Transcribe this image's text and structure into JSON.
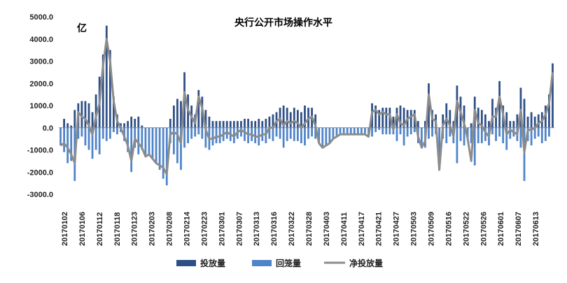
{
  "chart_data": {
    "type": "bar",
    "title": "央行公开市场操作水平",
    "unit_label": "亿",
    "ylim": [
      -3000,
      5000
    ],
    "yticks": [
      5000,
      4000,
      3000,
      2000,
      1000,
      0,
      -1000,
      -2000,
      -3000
    ],
    "ytick_labels": [
      "5000.0",
      "4000.0",
      "3000.0",
      "2000.0",
      "1000.0",
      "0.0",
      "-1000.0",
      "-2000.0",
      "-3000.0"
    ],
    "xtick_labels": [
      "20170102",
      "20170106",
      "20170112",
      "20170118",
      "20170123",
      "20170203",
      "20170208",
      "20170214",
      "20170223",
      "20170301",
      "20170307",
      "20170313",
      "20170316",
      "20170322",
      "20170328",
      "20170403",
      "20170411",
      "20170417",
      "20170421",
      "20170427",
      "20170503",
      "20170509",
      "20170516",
      "20170522",
      "20170526",
      "20170601",
      "20170607",
      "20170613"
    ],
    "grid": false,
    "legend_position": "bottom",
    "series": [
      {
        "name": "投放量",
        "color": "#2e4f86",
        "values": [
          0,
          400,
          200,
          100,
          800,
          1100,
          1200,
          1200,
          1100,
          700,
          1500,
          2300,
          3300,
          4600,
          3500,
          1400,
          600,
          200,
          200,
          300,
          500,
          400,
          500,
          100,
          0,
          0,
          0,
          0,
          0,
          0,
          0,
          400,
          1000,
          1300,
          1200,
          2500,
          1500,
          1000,
          600,
          1700,
          1400,
          800,
          500,
          300,
          300,
          300,
          300,
          300,
          300,
          300,
          300,
          300,
          400,
          400,
          300,
          300,
          400,
          300,
          400,
          500,
          600,
          700,
          900,
          1000,
          900,
          700,
          900,
          800,
          700,
          1000,
          900,
          900,
          600,
          0,
          0,
          0,
          0,
          0,
          0,
          0,
          0,
          0,
          0,
          0,
          0,
          0,
          0,
          0,
          1100,
          1000,
          800,
          900,
          900,
          900,
          500,
          900,
          1000,
          900,
          800,
          800,
          800,
          300,
          0,
          300,
          2000,
          800,
          600,
          0,
          600,
          1100,
          800,
          300,
          1900,
          1400,
          1000,
          0,
          200,
          1400,
          900,
          800,
          600,
          300,
          1300,
          900,
          2100,
          1000,
          700,
          300,
          300,
          600,
          1800,
          1300,
          500,
          700,
          500,
          600,
          700,
          1000,
          1500,
          2900
        ]
      },
      {
        "name": "回笼量",
        "color": "#4f84c9",
        "values": [
          -800,
          -1100,
          -1600,
          -1500,
          -2400,
          -500,
          -400,
          -800,
          -1000,
          -1400,
          -1000,
          -1200,
          -500,
          -600,
          -500,
          -200,
          -300,
          -200,
          -600,
          -1100,
          -2000,
          -900,
          -1200,
          -1000,
          -1300,
          -1200,
          -1400,
          -1600,
          -1900,
          -2300,
          -2600,
          -700,
          -1200,
          -1600,
          -1900,
          -900,
          -700,
          -500,
          -400,
          -300,
          -500,
          -900,
          -1000,
          -800,
          -700,
          -700,
          -600,
          -500,
          -600,
          -700,
          -500,
          -400,
          -600,
          -700,
          -600,
          -700,
          -800,
          -600,
          -700,
          -500,
          -600,
          -400,
          -500,
          -900,
          -600,
          -500,
          -600,
          -600,
          -700,
          -800,
          -500,
          -400,
          -500,
          -700,
          -900,
          -800,
          -700,
          -500,
          -400,
          -300,
          -300,
          -300,
          -300,
          -300,
          -300,
          -300,
          -300,
          -400,
          -400,
          -200,
          -100,
          -300,
          -300,
          -300,
          -300,
          -600,
          -300,
          -800,
          -400,
          -300,
          -200,
          -700,
          -900,
          -900,
          -500,
          -400,
          -300,
          -1900,
          -500,
          -700,
          -400,
          -700,
          -1600,
          -600,
          -800,
          -500,
          -700,
          -1700,
          -700,
          -700,
          -600,
          -800,
          -300,
          -600,
          -400,
          -700,
          -1000,
          -500,
          -400,
          -600,
          -900,
          -2400,
          -600,
          -800,
          -500,
          -400,
          -700,
          -600,
          -400
        ]
      },
      {
        "name": "净投放量",
        "color": "#8c8c8c",
        "values": [
          -800,
          -700,
          -900,
          -1200,
          -1600,
          700,
          500,
          400,
          100,
          -300,
          500,
          1100,
          2800,
          4000,
          3000,
          1200,
          300,
          0,
          -400,
          -800,
          -1500,
          -500,
          -700,
          -900,
          -1300,
          -1200,
          -1400,
          -1600,
          -1700,
          -1800,
          -2100,
          -300,
          -200,
          -300,
          -700,
          1600,
          800,
          500,
          200,
          1400,
          900,
          -100,
          -500,
          -500,
          -400,
          -400,
          -300,
          -200,
          -300,
          -400,
          -200,
          -100,
          -200,
          -300,
          -300,
          -400,
          -400,
          -300,
          -300,
          0,
          0,
          300,
          400,
          100,
          300,
          200,
          300,
          200,
          0,
          200,
          400,
          500,
          100,
          -700,
          -900,
          -800,
          -700,
          -500,
          -400,
          -300,
          -300,
          -300,
          -300,
          -300,
          -300,
          -300,
          -300,
          -400,
          700,
          800,
          600,
          700,
          600,
          600,
          -100,
          600,
          200,
          100,
          400,
          500,
          600,
          -400,
          -900,
          -600,
          1500,
          400,
          300,
          -1900,
          100,
          400,
          100,
          -400,
          1200,
          700,
          200,
          -500,
          -1500,
          800,
          200,
          100,
          -200,
          -400,
          500,
          500,
          1400,
          600,
          -300,
          -100,
          -200,
          -300,
          800,
          -1100,
          -100,
          -100,
          0,
          200,
          300,
          600,
          1100,
          2500
        ]
      }
    ]
  }
}
